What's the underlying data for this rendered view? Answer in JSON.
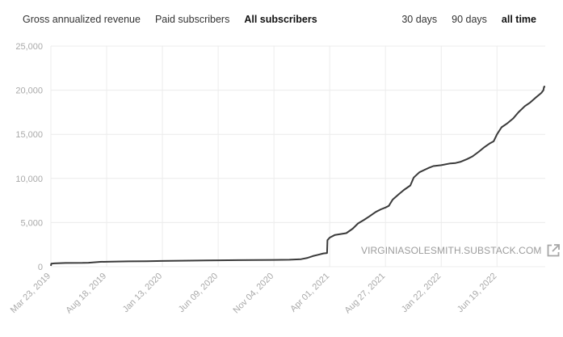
{
  "metric_tabs": [
    {
      "label": "Gross annualized revenue",
      "active": false
    },
    {
      "label": "Paid subscribers",
      "active": false
    },
    {
      "label": "All subscribers",
      "active": true
    }
  ],
  "range_tabs": [
    {
      "label": "30 days",
      "active": false
    },
    {
      "label": "90 days",
      "active": false
    },
    {
      "label": "all time",
      "active": true
    }
  ],
  "watermark": {
    "text": "VIRGINIASOLESMITH.SUBSTACK.COM",
    "icon": "external-link-icon"
  },
  "colors": {
    "line": "#3a3a3a",
    "grid": "#ececec",
    "tick_text": "#a9a9a9"
  },
  "chart_data": {
    "type": "line",
    "title": "",
    "xlabel": "",
    "ylabel": "",
    "ylim": [
      0,
      25000
    ],
    "yticks": [
      0,
      5000,
      10000,
      15000,
      20000,
      25000
    ],
    "ytick_labels": [
      "0",
      "5,000",
      "10,000",
      "15,000",
      "20,000",
      "25,000"
    ],
    "xlim": [
      "2019-03-23",
      "2022-10-25"
    ],
    "xticks": [
      "2019-03-23",
      "2019-08-18",
      "2020-01-13",
      "2020-06-09",
      "2020-11-04",
      "2021-04-01",
      "2021-08-27",
      "2022-01-22",
      "2022-06-19"
    ],
    "xtick_labels": [
      "Mar 23, 2019",
      "Aug 18, 2019",
      "Jan 13, 2020",
      "Jun 09, 2020",
      "Nov 04, 2020",
      "Apr 01, 2021",
      "Aug 27, 2021",
      "Jan 22, 2022",
      "Jun 19, 2022"
    ],
    "grid": true,
    "series": [
      {
        "x": [
          "2019-03-23",
          "2019-03-24",
          "2019-04-01",
          "2019-05-01",
          "2019-06-15",
          "2019-07-01",
          "2019-08-01",
          "2019-09-01",
          "2019-10-15",
          "2019-12-01",
          "2020-01-13",
          "2020-03-01",
          "2020-04-15",
          "2020-06-09",
          "2020-08-01",
          "2020-09-15",
          "2020-11-04",
          "2020-12-15",
          "2021-01-15",
          "2021-02-01",
          "2021-02-15",
          "2021-03-01",
          "2021-03-15",
          "2021-03-25",
          "2021-03-26",
          "2021-04-01",
          "2021-04-15",
          "2021-05-15",
          "2021-06-01",
          "2021-06-15",
          "2021-07-01",
          "2021-07-15",
          "2021-08-01",
          "2021-08-15",
          "2021-08-27",
          "2021-09-05",
          "2021-09-15",
          "2021-10-01",
          "2021-10-15",
          "2021-11-01",
          "2021-11-10",
          "2021-11-20",
          "2021-11-25",
          "2021-12-10",
          "2021-12-20",
          "2022-01-01",
          "2022-01-22",
          "2022-02-15",
          "2022-03-01",
          "2022-03-15",
          "2022-04-01",
          "2022-04-15",
          "2022-05-01",
          "2022-05-15",
          "2022-06-01",
          "2022-06-10",
          "2022-06-19",
          "2022-07-01",
          "2022-07-15",
          "2022-08-01",
          "2022-08-15",
          "2022-09-01",
          "2022-09-15",
          "2022-10-01",
          "2022-10-15",
          "2022-10-20",
          "2022-10-22",
          "2022-10-25"
        ],
        "y": [
          100,
          350,
          380,
          420,
          430,
          450,
          550,
          580,
          600,
          610,
          650,
          680,
          700,
          720,
          740,
          760,
          770,
          790,
          850,
          1000,
          1200,
          1350,
          1500,
          1550,
          3000,
          3300,
          3600,
          3800,
          4300,
          4900,
          5300,
          5700,
          6200,
          6500,
          6700,
          6900,
          7600,
          8200,
          8700,
          9200,
          10100,
          10500,
          10700,
          11000,
          11200,
          11400,
          11500,
          11700,
          11750,
          11900,
          12200,
          12500,
          13000,
          13500,
          14000,
          14200,
          15000,
          15800,
          16200,
          16800,
          17500,
          18200,
          18600,
          19200,
          19700,
          20000,
          20400,
          20400
        ]
      }
    ]
  }
}
